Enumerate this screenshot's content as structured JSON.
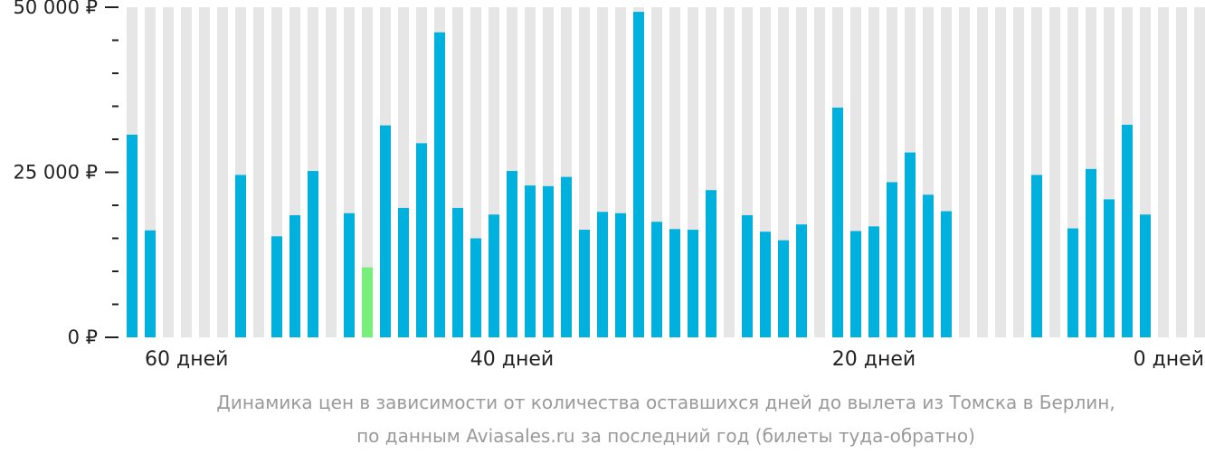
{
  "chart_data": {
    "type": "bar",
    "x_order": "days before departure, from 61 (left) to 0 (right)",
    "x": [
      61,
      60,
      59,
      58,
      57,
      56,
      55,
      54,
      53,
      52,
      51,
      50,
      49,
      48,
      47,
      46,
      45,
      44,
      43,
      42,
      41,
      40,
      39,
      38,
      37,
      36,
      35,
      34,
      33,
      32,
      31,
      30,
      29,
      28,
      27,
      26,
      25,
      24,
      23,
      22,
      21,
      20,
      19,
      18,
      17,
      16,
      15,
      14,
      13,
      12,
      11,
      10,
      9,
      8,
      7,
      6,
      5,
      4,
      3,
      2,
      1,
      0
    ],
    "values": [
      30700,
      16200,
      null,
      null,
      null,
      null,
      24600,
      null,
      15300,
      18500,
      25200,
      null,
      18800,
      10600,
      32100,
      19600,
      29400,
      46200,
      19600,
      15000,
      18600,
      25200,
      23000,
      22900,
      24300,
      16300,
      19000,
      18800,
      49300,
      17500,
      16400,
      16300,
      22300,
      null,
      18500,
      16000,
      14700,
      17100,
      null,
      34800,
      16100,
      16800,
      23500,
      28000,
      21600,
      19100,
      null,
      null,
      null,
      null,
      24600,
      null,
      16500,
      25500,
      20900,
      32200,
      18600,
      null,
      null,
      null,
      null,
      null
    ],
    "highlight_index": 13,
    "colors": {
      "bar": "#00b1de",
      "highlight": "#78ef7a",
      "empty": "#e6e6e6",
      "axis": "#222222",
      "caption": "#9a9a9a"
    },
    "ylim": [
      0,
      50000
    ],
    "yticks": [
      {
        "value": 0,
        "label": "0 ₽"
      },
      {
        "value": 25000,
        "label": "25 000 ₽"
      },
      {
        "value": 50000,
        "label": "50 000 ₽"
      }
    ],
    "xticks": [
      {
        "day": 60,
        "label": "60 дней"
      },
      {
        "day": 40,
        "label": "40 дней"
      },
      {
        "day": 20,
        "label": "20 дней"
      },
      {
        "day": 0,
        "label": "0 дней"
      }
    ],
    "caption_line1": "Динамика цен в зависимости от количества оставшихся дней до вылета из Томска в Берлин,",
    "caption_line2": "по данным Aviasales.ru за последний год (билеты туда-обратно)"
  }
}
